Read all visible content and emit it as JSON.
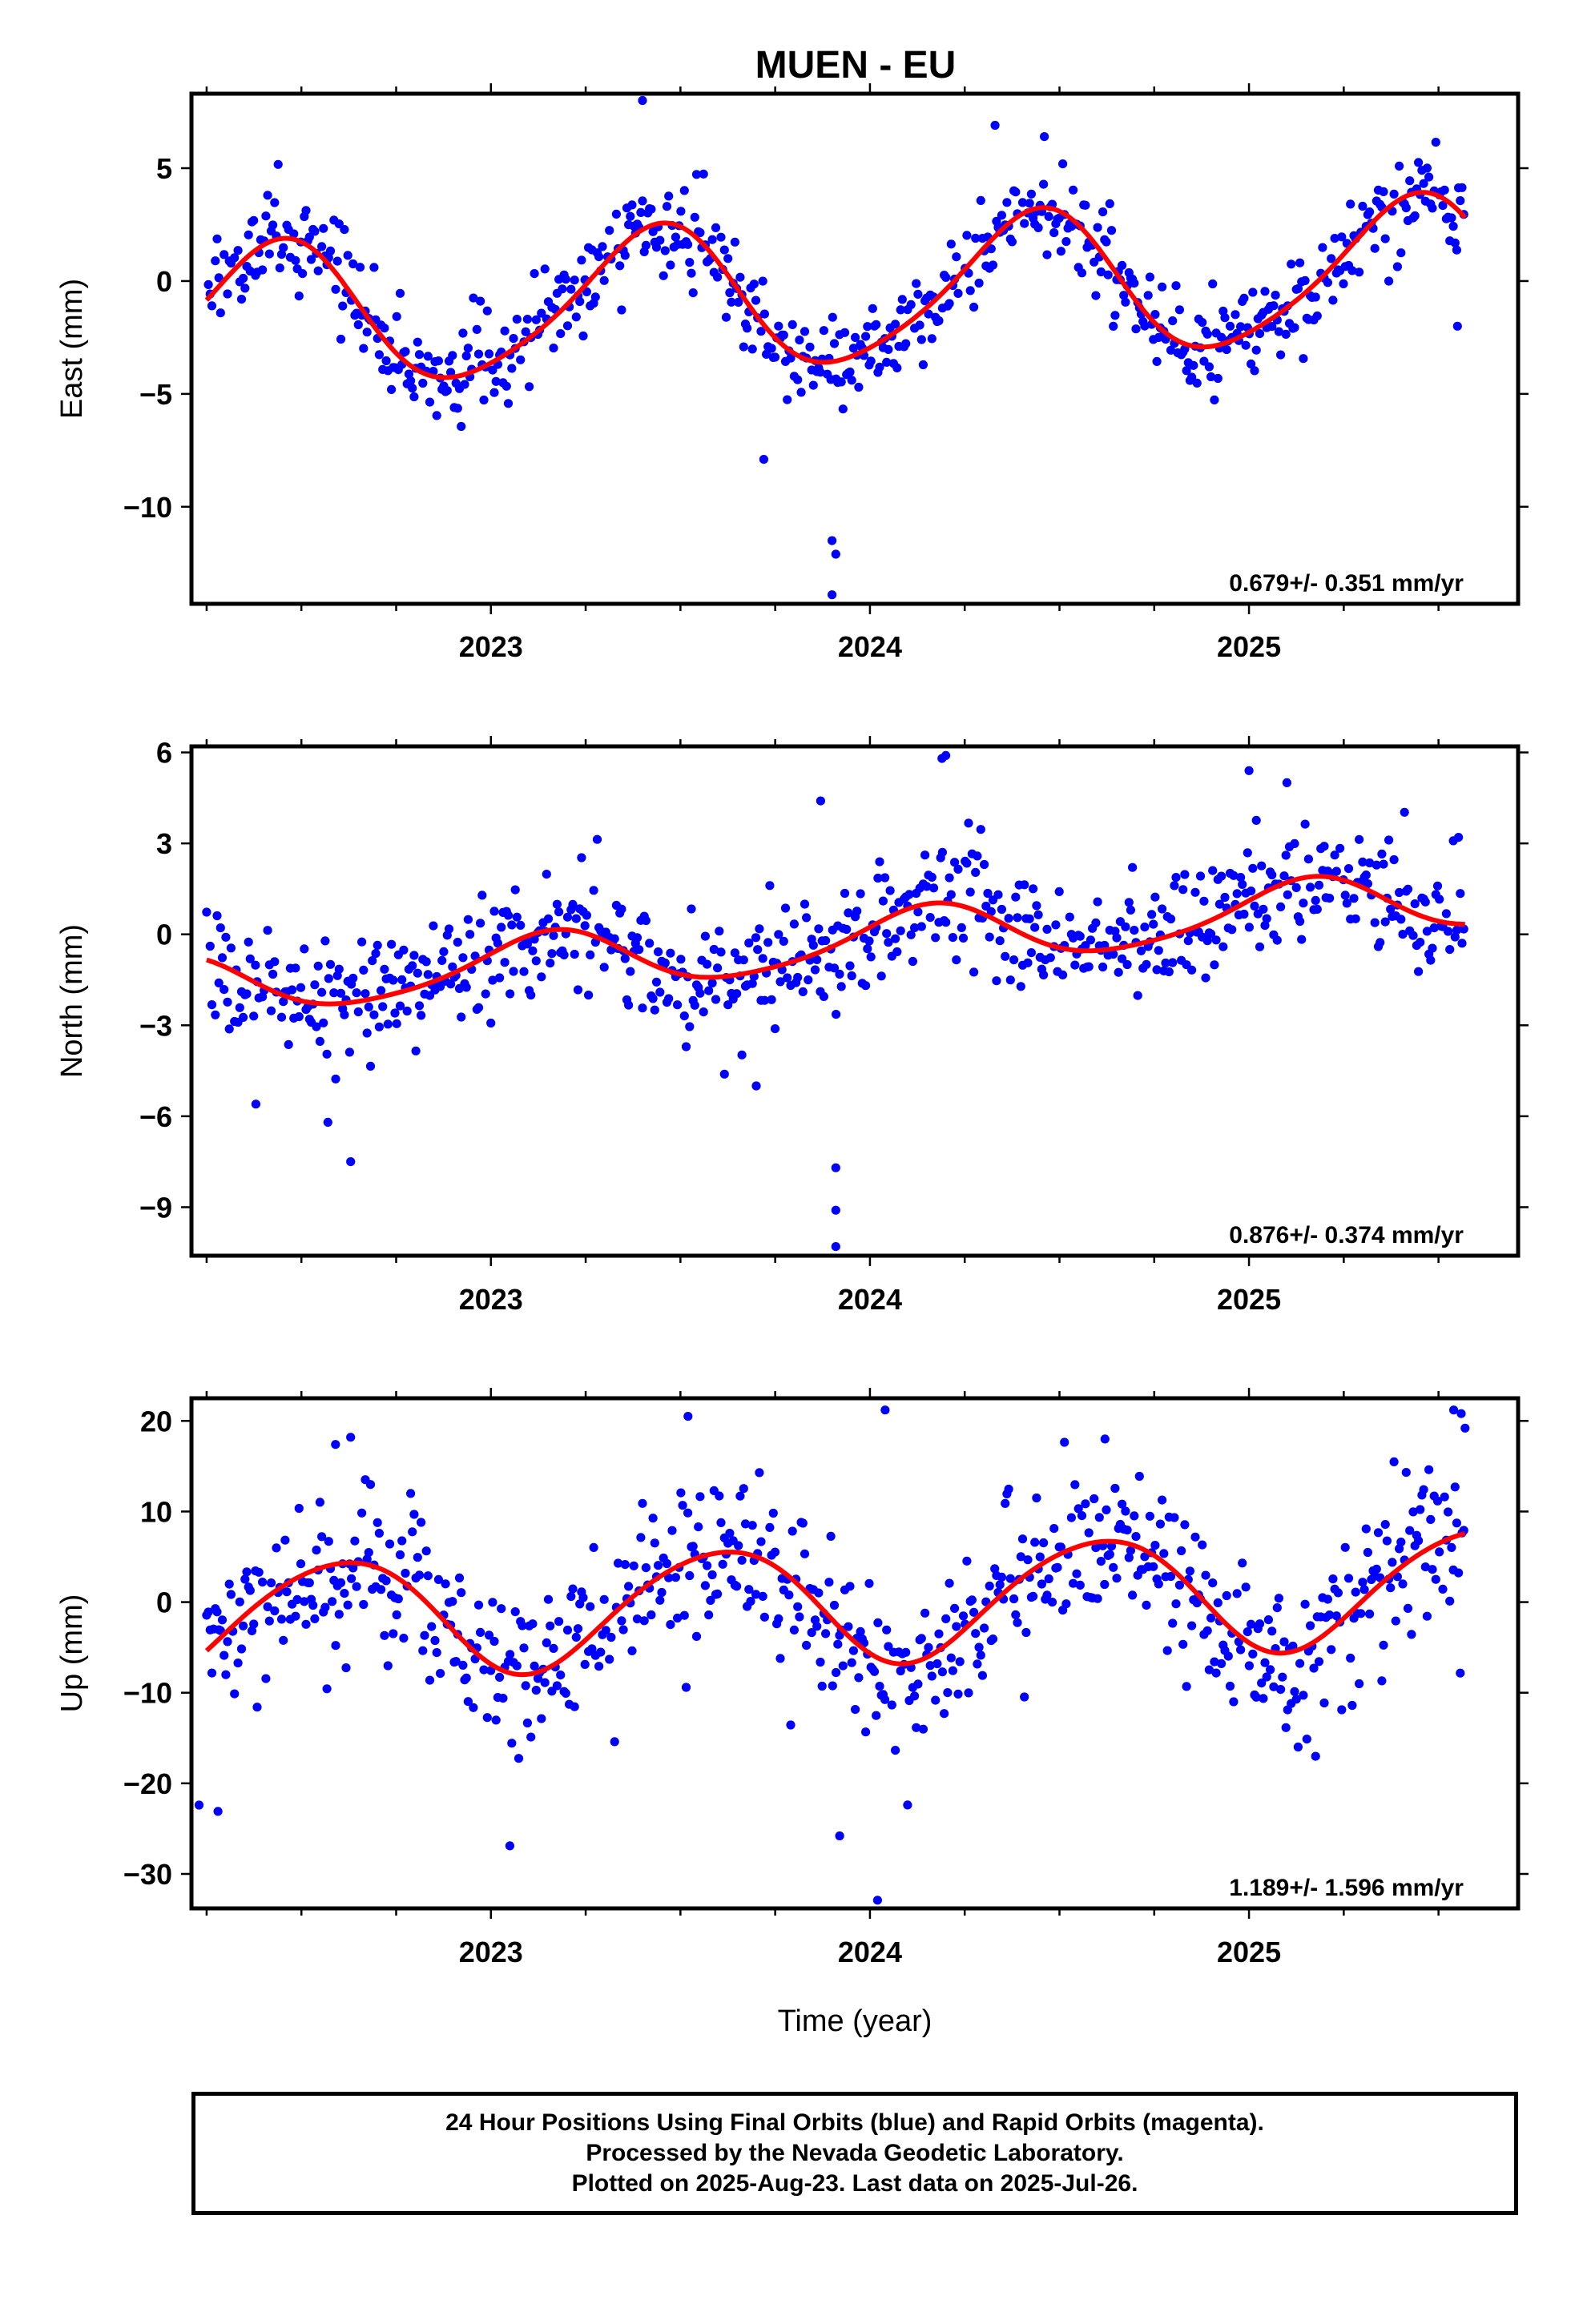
{
  "colors": {
    "data_points": "#0000ff",
    "fit_curve": "#ff0000",
    "frame": "#000000",
    "background": "#ffffff"
  },
  "chart_data": [
    {
      "type": "scatter",
      "title": "MUEN - EU",
      "xlabel": "",
      "ylabel": "East (mm)",
      "xlim": [
        2022.21,
        2025.71
      ],
      "ylim": [
        -14.3,
        8.3
      ],
      "x_ticks": [
        2023,
        2024,
        2025
      ],
      "y_ticks": [
        -10,
        -5,
        0,
        5
      ],
      "y_tick_labels": [
        "−10",
        "−5",
        "0",
        "5"
      ],
      "rate_text": "0.679+/- 0.351 mm/yr",
      "fit_model": {
        "type": "line",
        "rate_mm_per_yr": 0.679,
        "ref_year": 2024.0,
        "offset": -0.55,
        "annual_amp": 3.15,
        "annual_phase_peak": 2024.43,
        "semiannual_amp": 0.45,
        "semiannual_phase_peak": 2024.5
      },
      "series": [
        {
          "type": "scatter",
          "start": 2022.25,
          "end": 2025.57,
          "step": 0.0046,
          "scatter_sd": 1.05,
          "outliers": [
            [
              2023.9,
              -11.5
            ],
            [
              2023.91,
              -12.1
            ],
            [
              2023.9,
              -13.9
            ],
            [
              2023.72,
              -7.9
            ],
            [
              2023.4,
              8.0
            ],
            [
              2024.33,
              6.9
            ],
            [
              2024.46,
              6.4
            ],
            [
              2025.55,
              -2.0
            ]
          ]
        }
      ]
    },
    {
      "type": "scatter",
      "title": "",
      "xlabel": "",
      "ylabel": "North (mm)",
      "xlim": [
        2022.21,
        2025.71
      ],
      "ylim": [
        -10.6,
        6.2
      ],
      "x_ticks": [
        2023,
        2024,
        2025
      ],
      "y_ticks": [
        -9,
        -6,
        -3,
        0,
        3,
        6
      ],
      "y_tick_labels": [
        "−9",
        "−6",
        "−3",
        "0",
        "3",
        "6"
      ],
      "rate_text": "0.876+/- 0.374 mm/yr",
      "fit_model": {
        "type": "line",
        "rate_mm_per_yr": 0.876,
        "ref_year": 2024.0,
        "offset": -0.2,
        "annual_amp": 0.95,
        "annual_phase_peak": 2024.15,
        "semiannual_amp": 0.15,
        "semiannual_phase_peak": 2024.2
      },
      "series": [
        {
          "type": "scatter",
          "start": 2022.25,
          "end": 2025.57,
          "step": 0.0046,
          "scatter_sd": 1.0,
          "outliers": [
            [
              2023.91,
              -7.7
            ],
            [
              2023.91,
              -9.1
            ],
            [
              2023.91,
              -10.3
            ],
            [
              2022.63,
              -7.5
            ],
            [
              2022.57,
              -6.2
            ],
            [
              2022.38,
              -5.6
            ],
            [
              2023.7,
              -5.0
            ],
            [
              2024.2,
              5.9
            ],
            [
              2024.19,
              5.8
            ],
            [
              2025.0,
              5.4
            ],
            [
              2025.1,
              5.0
            ],
            [
              2023.87,
              4.4
            ]
          ]
        }
      ]
    },
    {
      "type": "scatter",
      "title": "",
      "xlabel": "Time (year)",
      "ylabel": "Up (mm)",
      "xlim": [
        2022.21,
        2025.71
      ],
      "ylim": [
        -33.8,
        22.5
      ],
      "x_ticks": [
        2023,
        2024,
        2025
      ],
      "y_ticks": [
        -30,
        -20,
        -10,
        0,
        10,
        20
      ],
      "y_tick_labels": [
        "−30",
        "−20",
        "−10",
        "0",
        "10",
        "20"
      ],
      "rate_text": "1.189+/- 1.596 mm/yr",
      "fit_model": {
        "type": "line",
        "rate_mm_per_yr": 1.189,
        "ref_year": 2024.0,
        "offset": 0.0,
        "annual_amp": 6.4,
        "annual_phase_peak": 2024.6,
        "semiannual_amp": 0.6,
        "semiannual_phase_peak": 2024.3
      },
      "series": [
        {
          "type": "scatter",
          "start": 2022.25,
          "end": 2025.57,
          "step": 0.0046,
          "scatter_sd": 4.6,
          "outliers": [
            [
              2024.02,
              -32.9
            ],
            [
              2023.05,
              -26.9
            ],
            [
              2023.92,
              -25.8
            ],
            [
              2022.28,
              -23.1
            ],
            [
              2022.23,
              -22.4
            ],
            [
              2024.04,
              21.2
            ],
            [
              2025.54,
              21.2
            ],
            [
              2025.56,
              20.8
            ],
            [
              2023.52,
              20.5
            ],
            [
              2025.57,
              19.2
            ],
            [
              2022.63,
              18.2
            ],
            [
              2022.59,
              17.4
            ],
            [
              2024.62,
              18.0
            ]
          ]
        }
      ]
    }
  ],
  "footer": {
    "line1": "24 Hour Positions Using Final Orbits (blue) and Rapid Orbits (magenta).",
    "line2": "Processed by the Nevada Geodetic Laboratory.",
    "line3": "Plotted on 2025-Aug-23. Last data on 2025-Jul-26."
  }
}
